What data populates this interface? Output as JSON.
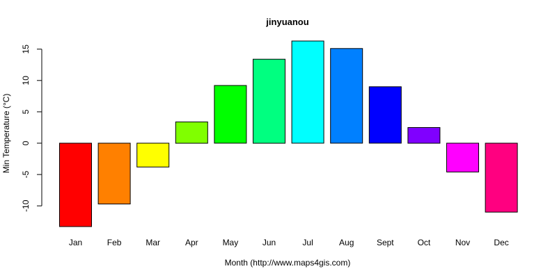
{
  "chart_data": {
    "type": "bar",
    "title": "jinyuanou",
    "xlabel": "Month (http://www.maps4gis.com)",
    "ylabel": "Min Temperature (°C)",
    "categories": [
      "Jan",
      "Feb",
      "Mar",
      "Apr",
      "May",
      "Jun",
      "Jul",
      "Aug",
      "Sept",
      "Oct",
      "Nov",
      "Dec"
    ],
    "values": [
      -13.3,
      -9.7,
      -3.8,
      3.4,
      9.2,
      13.4,
      16.3,
      15.1,
      9.0,
      2.5,
      -4.6,
      -11.0
    ],
    "colors": [
      "#FF0000",
      "#FF8000",
      "#FFFF00",
      "#80FF00",
      "#00FF00",
      "#00FF80",
      "#00FFFF",
      "#0080FF",
      "#0000FF",
      "#8000FF",
      "#FF00FF",
      "#FF0080"
    ],
    "yticks": [
      -10,
      -5,
      0,
      5,
      10,
      15
    ],
    "ytick_labels": [
      "-10",
      "-5",
      "0",
      "5",
      "10",
      "15"
    ],
    "ylim": [
      -13.3,
      16.3
    ],
    "grid": false,
    "legend": "none"
  }
}
